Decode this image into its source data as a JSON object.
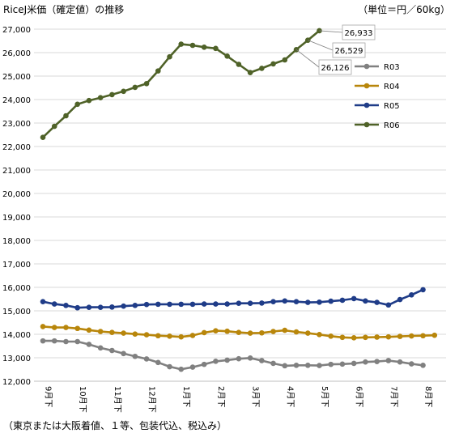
{
  "chart_data": {
    "type": "line",
    "title": "RiceJ米価（確定値）の推移",
    "unit": "（単位＝円／60kg）",
    "footnote": "（東京または大阪着値、１等、包装代込、税込み）",
    "ylim": [
      12000,
      27000
    ],
    "yticks": [
      12000,
      13000,
      14000,
      15000,
      16000,
      17000,
      18000,
      19000,
      20000,
      21000,
      22000,
      23000,
      24000,
      25000,
      26000,
      27000
    ],
    "ytick_labels": [
      "12,000",
      "13,000",
      "14,000",
      "15,000",
      "16,000",
      "17,000",
      "18,000",
      "19,000",
      "20,000",
      "21,000",
      "22,000",
      "23,000",
      "24,000",
      "25,000",
      "26,000",
      "27,000"
    ],
    "x_count": 36,
    "x_tick_labels": [
      {
        "index": 0,
        "label": "9月下"
      },
      {
        "index": 3,
        "label": "10月下"
      },
      {
        "index": 6,
        "label": "11月下"
      },
      {
        "index": 9,
        "label": "12月下"
      },
      {
        "index": 12,
        "label": "1月下"
      },
      {
        "index": 15,
        "label": "2月下"
      },
      {
        "index": 18,
        "label": "3月下"
      },
      {
        "index": 21,
        "label": "4月下"
      },
      {
        "index": 24,
        "label": "5月下"
      },
      {
        "index": 27,
        "label": "6月下"
      },
      {
        "index": 30,
        "label": "7月下"
      },
      {
        "index": 33,
        "label": "8月下"
      }
    ],
    "grid": true,
    "legend_position": "right",
    "series": [
      {
        "name": "R03",
        "color": "#808080",
        "values": [
          13720,
          13720,
          13690,
          13690,
          13570,
          13420,
          13310,
          13180,
          13060,
          12950,
          12800,
          12620,
          12510,
          12600,
          12720,
          12850,
          12900,
          12960,
          12990,
          12880,
          12760,
          12660,
          12680,
          12680,
          12670,
          12720,
          12730,
          12760,
          12820,
          12840,
          12880,
          12820,
          12740,
          12680
        ]
      },
      {
        "name": "R04",
        "color": "#b8860b",
        "values": [
          14330,
          14290,
          14290,
          14250,
          14180,
          14120,
          14080,
          14050,
          14010,
          13980,
          13940,
          13920,
          13890,
          13950,
          14070,
          14150,
          14130,
          14080,
          14050,
          14060,
          14120,
          14170,
          14100,
          14050,
          13990,
          13920,
          13870,
          13850,
          13870,
          13880,
          13890,
          13910,
          13930,
          13940,
          13960
        ]
      },
      {
        "name": "R05",
        "color": "#1f3c88",
        "values": [
          15390,
          15290,
          15230,
          15130,
          15150,
          15150,
          15160,
          15200,
          15230,
          15270,
          15280,
          15280,
          15280,
          15280,
          15290,
          15290,
          15290,
          15320,
          15320,
          15330,
          15390,
          15420,
          15390,
          15360,
          15370,
          15410,
          15450,
          15520,
          15420,
          15360,
          15250,
          15480,
          15680,
          15900
        ]
      },
      {
        "name": "R06",
        "color": "#4f6228",
        "values": [
          22390,
          22860,
          23310,
          23800,
          23960,
          24080,
          24210,
          24350,
          24520,
          24680,
          25220,
          25820,
          26360,
          26310,
          26230,
          26180,
          25850,
          25500,
          25150,
          25330,
          25520,
          25690,
          26126,
          26529,
          26933
        ]
      }
    ],
    "data_labels": [
      {
        "series": "R06",
        "index": 22,
        "text": "26,126"
      },
      {
        "series": "R06",
        "index": 23,
        "text": "26,529"
      },
      {
        "series": "R06",
        "index": 24,
        "text": "26,933"
      }
    ]
  }
}
